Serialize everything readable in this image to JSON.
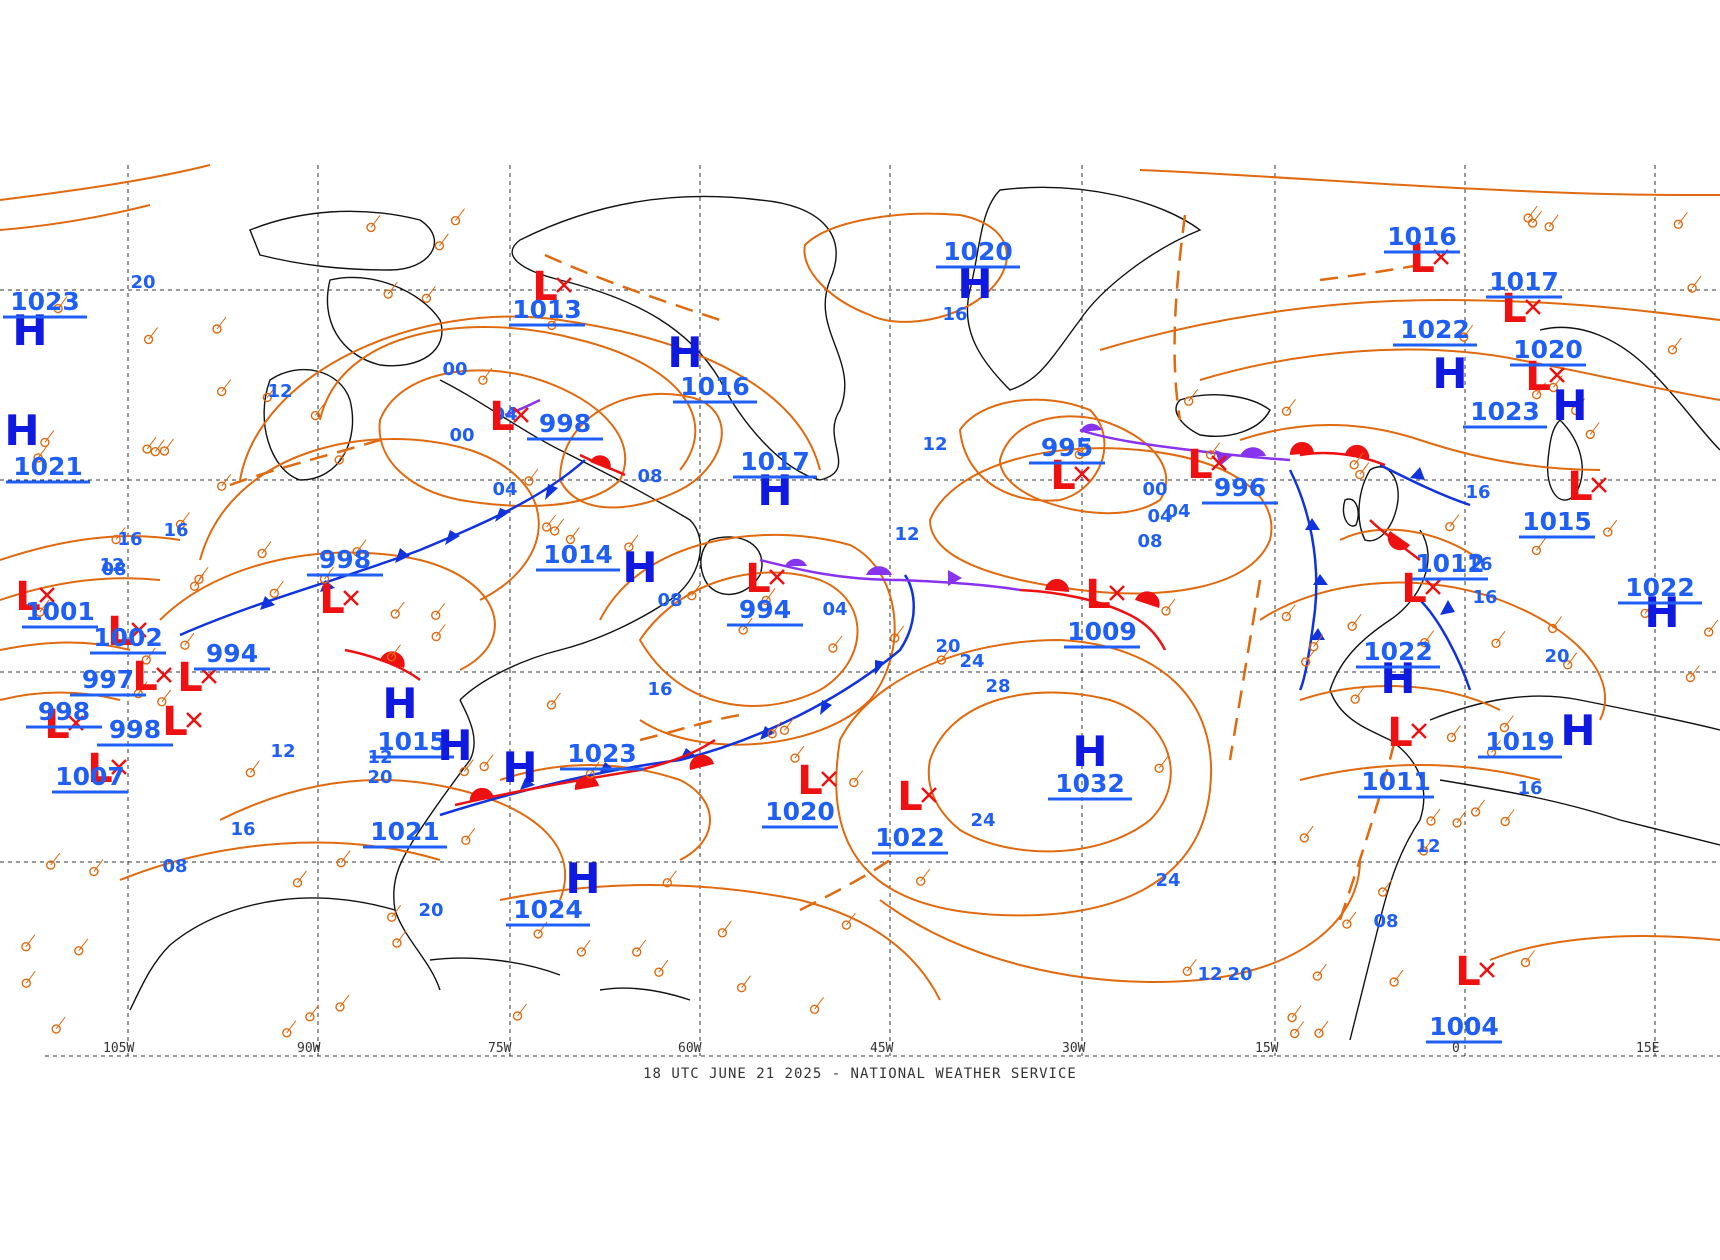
{
  "map": {
    "footer": "18 UTC JUNE 21 2025 - NATIONAL WEATHER SERVICE",
    "longitudes": [
      "105W",
      "90W",
      "75W",
      "60W",
      "45W",
      "30W",
      "15W",
      "0",
      "15E"
    ],
    "colors": {
      "isobar": "#e06a10",
      "coast": "#111111",
      "cold_front": "#1133dd",
      "warm_front": "#ee1111",
      "occluded_front": "#8833ee",
      "trough": "#e06a10",
      "pressure_label": "#1f5ff5",
      "high_symbol": "#1019e0",
      "low_symbol": "#ee1111",
      "station_temp": "#e06a10",
      "station_dew": "#dd33cc"
    },
    "highs": [
      {
        "symbol": "H",
        "pressure": "1023"
      },
      {
        "symbol": "H",
        "pressure": "1021"
      },
      {
        "symbol": "H",
        "pressure": "1020"
      },
      {
        "symbol": "H",
        "pressure": "1016"
      },
      {
        "symbol": "H",
        "pressure": "1017"
      },
      {
        "symbol": "H",
        "pressure": "1014"
      },
      {
        "symbol": "H",
        "pressure": "1015"
      },
      {
        "symbol": "H",
        "pressure": "1021"
      },
      {
        "symbol": "H",
        "pressure": "1023"
      },
      {
        "symbol": "H",
        "pressure": "1024"
      },
      {
        "symbol": "H",
        "pressure": "1032"
      },
      {
        "symbol": "H",
        "pressure": "1022"
      },
      {
        "symbol": "H",
        "pressure": "1023"
      },
      {
        "symbol": "H",
        "pressure": "1022"
      },
      {
        "symbol": "H",
        "pressure": "1022"
      },
      {
        "symbol": "H",
        "pressure": "1019"
      }
    ],
    "lows": [
      {
        "symbol": "L",
        "pressure": "1013"
      },
      {
        "symbol": "L",
        "pressure": "998"
      },
      {
        "symbol": "L",
        "pressure": "998"
      },
      {
        "symbol": "L",
        "pressure": "994"
      },
      {
        "symbol": "L",
        "pressure": "994"
      },
      {
        "symbol": "L",
        "pressure": "995"
      },
      {
        "symbol": "L",
        "pressure": "996"
      },
      {
        "symbol": "L",
        "pressure": "1009"
      },
      {
        "symbol": "L",
        "pressure": "1020"
      },
      {
        "symbol": "L",
        "pressure": "1022"
      },
      {
        "symbol": "L",
        "pressure": "1016"
      },
      {
        "symbol": "L",
        "pressure": "1017"
      },
      {
        "symbol": "L",
        "pressure": "1020"
      },
      {
        "symbol": "L",
        "pressure": "1015"
      },
      {
        "symbol": "L",
        "pressure": "1012"
      },
      {
        "symbol": "L",
        "pressure": "1011"
      },
      {
        "symbol": "L",
        "pressure": "1004"
      },
      {
        "symbol": "L",
        "pressure": "1001"
      },
      {
        "symbol": "L",
        "pressure": "1002"
      },
      {
        "symbol": "L",
        "pressure": "997"
      },
      {
        "symbol": "L",
        "pressure": "998"
      },
      {
        "symbol": "L",
        "pressure": "998"
      },
      {
        "symbol": "L",
        "pressure": "1007"
      }
    ],
    "contour_labels": [
      "20",
      "12",
      "16",
      "16",
      "12",
      "04",
      "04",
      "08",
      "00",
      "04",
      "08",
      "08",
      "16",
      "12",
      "20",
      "24",
      "28",
      "24",
      "24",
      "00",
      "04",
      "08",
      "16",
      "16",
      "12",
      "08",
      "20",
      "16",
      "12",
      "16",
      "12",
      "20",
      "12",
      "16",
      "20",
      "08",
      "00",
      "04",
      "20",
      "12",
      "16"
    ]
  }
}
